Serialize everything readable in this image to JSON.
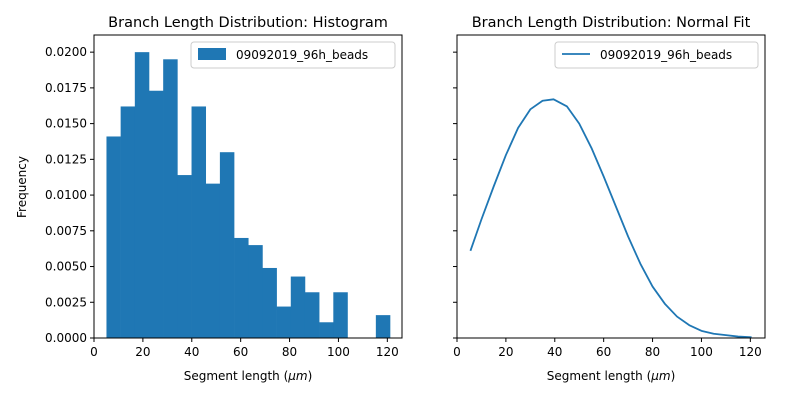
{
  "chart_data": [
    {
      "type": "bar",
      "title": "Branch Length Distribution: Histogram",
      "xlabel": "Segment length (μm)",
      "ylabel": "Frequency",
      "xlim": [
        0,
        126
      ],
      "ylim": [
        0,
        0.0212
      ],
      "xticks": [
        0,
        20,
        40,
        60,
        80,
        100,
        120
      ],
      "yticks": [
        "0.0000",
        "0.0025",
        "0.0050",
        "0.0075",
        "0.0100",
        "0.0125",
        "0.0150",
        "0.0175",
        "0.0200"
      ],
      "grid": false,
      "legend": {
        "position": "top-right"
      },
      "series": [
        {
          "name": "09092019_96h_beads",
          "color": "#1f77b4",
          "bin_edges": [
            5.1,
            10.9,
            16.7,
            22.5,
            28.3,
            34.1,
            39.9,
            45.7,
            51.5,
            57.3,
            63.1,
            68.9,
            74.7,
            80.5,
            86.3,
            92.1,
            97.9,
            103.7,
            109.5,
            115.3,
            121.1
          ],
          "values": [
            0.0141,
            0.0162,
            0.02,
            0.0173,
            0.0195,
            0.0114,
            0.0162,
            0.0108,
            0.013,
            0.007,
            0.0065,
            0.0049,
            0.0022,
            0.0043,
            0.0032,
            0.0011,
            0.0032,
            0.0,
            0.0,
            0.0016
          ]
        }
      ]
    },
    {
      "type": "line",
      "title": "Branch Length Distribution: Normal Fit",
      "xlabel": "Segment length (μm)",
      "xlim": [
        0,
        126
      ],
      "ylim": [
        0,
        0.0212
      ],
      "xticks": [
        0,
        20,
        40,
        60,
        80,
        100,
        120
      ],
      "shared_y": true,
      "grid": false,
      "legend": {
        "position": "top-right"
      },
      "series": [
        {
          "name": "09092019_96h_beads",
          "color": "#1f77b4",
          "x": [
            5.5,
            10,
            15,
            20,
            25,
            30,
            35,
            39.5,
            45,
            50,
            55,
            60,
            65,
            70,
            75,
            80,
            85,
            90,
            95,
            100,
            105,
            110,
            115,
            120.5
          ],
          "y": [
            0.0061,
            0.0083,
            0.0106,
            0.0128,
            0.0147,
            0.016,
            0.0166,
            0.0167,
            0.0162,
            0.015,
            0.0133,
            0.0113,
            0.0092,
            0.0071,
            0.0052,
            0.0036,
            0.0024,
            0.0015,
            0.0009,
            0.0005,
            0.0003,
            0.0002,
            0.0001,
            5e-05
          ]
        }
      ]
    }
  ]
}
